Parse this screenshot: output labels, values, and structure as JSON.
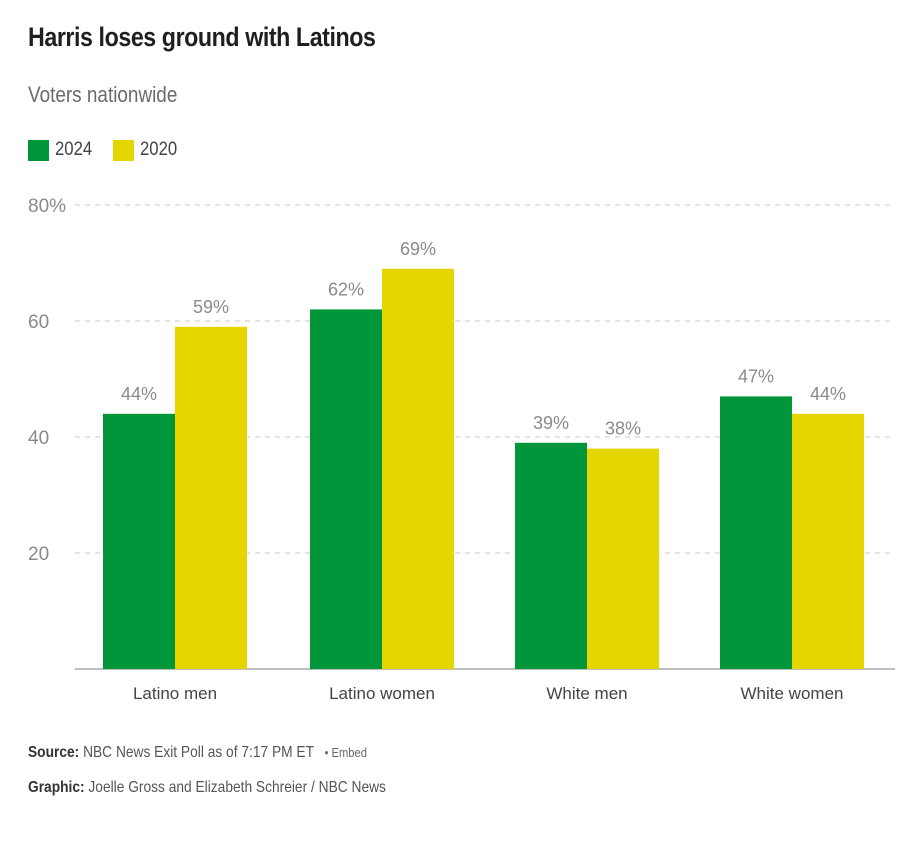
{
  "title": "Harris loses ground with Latinos",
  "subtitle": "Voters nationwide",
  "footer": {
    "source_label": "Source:",
    "source_text": "NBC News Exit Poll as of 7:17 PM ET",
    "embed": "• Embed",
    "graphic_label": "Graphic:",
    "graphic_text": "Joelle Gross and Elizabeth Schreier / NBC News"
  },
  "colors": {
    "2024": "#009639",
    "2020": "#e6d600",
    "grid": "#c8c8c8",
    "axis": "#999999",
    "label": "#8a8a8a"
  },
  "chart_data": {
    "type": "bar",
    "categories": [
      "Latino men",
      "Latino women",
      "White men",
      "White women"
    ],
    "series": [
      {
        "name": "2024",
        "values": [
          44,
          62,
          39,
          47
        ]
      },
      {
        "name": "2020",
        "values": [
          59,
          69,
          38,
          44
        ]
      }
    ],
    "data_labels": {
      "2024": [
        "44%",
        "62%",
        "39%",
        "47%"
      ],
      "2020": [
        "59%",
        "69%",
        "38%",
        "44%"
      ]
    },
    "ylim": [
      0,
      80
    ],
    "yticks": [
      20,
      40,
      60,
      80
    ],
    "ytick_labels": [
      "20",
      "40",
      "60",
      "80%"
    ],
    "grid": true,
    "legend": "top-left"
  }
}
